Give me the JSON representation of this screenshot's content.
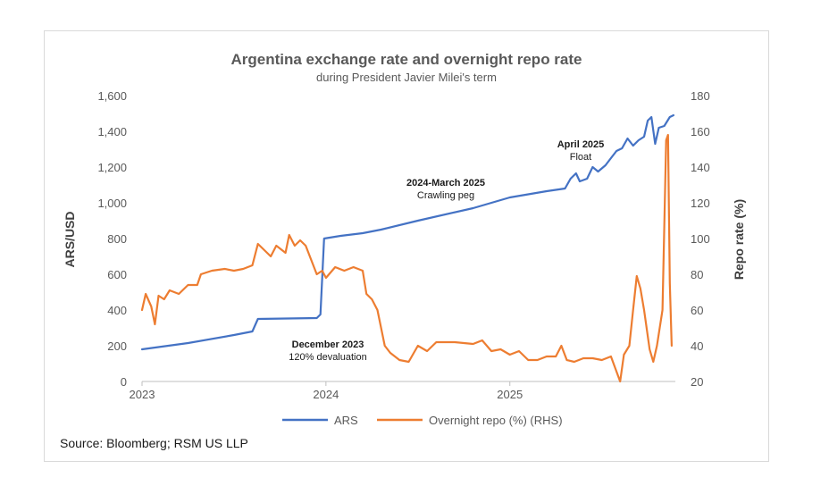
{
  "chart_data": {
    "type": "line",
    "title": "Argentina exchange rate and overnight repo rate",
    "subtitle": "during President Javier Milei's term",
    "ylabel_left": "ARS/USD",
    "ylabel_right": "Repo rate (%)",
    "ylim_left": [
      0,
      1600
    ],
    "ylim_right": [
      20,
      180
    ],
    "yticks_left": [
      "0",
      "200",
      "400",
      "600",
      "800",
      "1,000",
      "1,200",
      "1,400",
      "1,600"
    ],
    "yticks_right": [
      "20",
      "40",
      "60",
      "80",
      "100",
      "120",
      "140",
      "160",
      "180"
    ],
    "xticks": [
      {
        "label": "2023",
        "x": 2023.0
      },
      {
        "label": "2024",
        "x": 2024.0
      },
      {
        "label": "2025",
        "x": 2025.0
      }
    ],
    "xlim": [
      2023.0,
      2025.9
    ],
    "series": [
      {
        "name": "ARS",
        "axis": "left",
        "color": "#4472C4",
        "points": [
          [
            2023.0,
            180
          ],
          [
            2023.25,
            215
          ],
          [
            2023.5,
            260
          ],
          [
            2023.6,
            280
          ],
          [
            2023.63,
            350
          ],
          [
            2023.95,
            355
          ],
          [
            2023.97,
            375
          ],
          [
            2023.99,
            800
          ],
          [
            2024.08,
            815
          ],
          [
            2024.2,
            830
          ],
          [
            2024.3,
            850
          ],
          [
            2024.5,
            900
          ],
          [
            2024.8,
            970
          ],
          [
            2025.0,
            1030
          ],
          [
            2025.2,
            1065
          ],
          [
            2025.3,
            1080
          ],
          [
            2025.33,
            1135
          ],
          [
            2025.36,
            1165
          ],
          [
            2025.38,
            1120
          ],
          [
            2025.42,
            1135
          ],
          [
            2025.45,
            1200
          ],
          [
            2025.48,
            1175
          ],
          [
            2025.52,
            1210
          ],
          [
            2025.55,
            1250
          ],
          [
            2025.58,
            1290
          ],
          [
            2025.61,
            1305
          ],
          [
            2025.64,
            1360
          ],
          [
            2025.67,
            1320
          ],
          [
            2025.7,
            1350
          ],
          [
            2025.73,
            1370
          ],
          [
            2025.75,
            1460
          ],
          [
            2025.77,
            1480
          ],
          [
            2025.79,
            1330
          ],
          [
            2025.81,
            1420
          ],
          [
            2025.84,
            1430
          ],
          [
            2025.87,
            1480
          ],
          [
            2025.89,
            1490
          ]
        ]
      },
      {
        "name": "Overnight repo (%) (RHS)",
        "axis": "right",
        "color": "#ED7D31",
        "points": [
          [
            2023.0,
            60
          ],
          [
            2023.02,
            69
          ],
          [
            2023.05,
            62
          ],
          [
            2023.07,
            52
          ],
          [
            2023.09,
            68
          ],
          [
            2023.12,
            66
          ],
          [
            2023.15,
            71
          ],
          [
            2023.2,
            69
          ],
          [
            2023.25,
            74
          ],
          [
            2023.3,
            74
          ],
          [
            2023.32,
            80
          ],
          [
            2023.38,
            82
          ],
          [
            2023.45,
            83
          ],
          [
            2023.5,
            82
          ],
          [
            2023.55,
            83
          ],
          [
            2023.6,
            85
          ],
          [
            2023.63,
            97
          ],
          [
            2023.66,
            94
          ],
          [
            2023.7,
            90
          ],
          [
            2023.73,
            96
          ],
          [
            2023.78,
            92
          ],
          [
            2023.8,
            102
          ],
          [
            2023.83,
            96
          ],
          [
            2023.86,
            99
          ],
          [
            2023.89,
            96
          ],
          [
            2023.92,
            88
          ],
          [
            2023.95,
            80
          ],
          [
            2023.98,
            82
          ],
          [
            2024.0,
            78
          ],
          [
            2024.05,
            84
          ],
          [
            2024.1,
            82
          ],
          [
            2024.15,
            84
          ],
          [
            2024.2,
            82
          ],
          [
            2024.22,
            69
          ],
          [
            2024.25,
            66
          ],
          [
            2024.28,
            60
          ],
          [
            2024.32,
            40
          ],
          [
            2024.35,
            36
          ],
          [
            2024.4,
            32
          ],
          [
            2024.45,
            31
          ],
          [
            2024.5,
            40
          ],
          [
            2024.55,
            37
          ],
          [
            2024.6,
            42
          ],
          [
            2024.7,
            42
          ],
          [
            2024.8,
            41
          ],
          [
            2024.85,
            43
          ],
          [
            2024.9,
            37
          ],
          [
            2024.95,
            38
          ],
          [
            2025.0,
            35
          ],
          [
            2025.05,
            37
          ],
          [
            2025.1,
            32
          ],
          [
            2025.15,
            32
          ],
          [
            2025.2,
            34
          ],
          [
            2025.25,
            34
          ],
          [
            2025.28,
            40
          ],
          [
            2025.31,
            32
          ],
          [
            2025.35,
            31
          ],
          [
            2025.4,
            33
          ],
          [
            2025.45,
            33
          ],
          [
            2025.5,
            32
          ],
          [
            2025.55,
            34
          ],
          [
            2025.6,
            20
          ],
          [
            2025.62,
            35
          ],
          [
            2025.65,
            40
          ],
          [
            2025.67,
            60
          ],
          [
            2025.69,
            79
          ],
          [
            2025.71,
            72
          ],
          [
            2025.73,
            60
          ],
          [
            2025.76,
            38
          ],
          [
            2025.78,
            31
          ],
          [
            2025.8,
            40
          ],
          [
            2025.83,
            60
          ],
          [
            2025.85,
            155
          ],
          [
            2025.86,
            158
          ],
          [
            2025.87,
            75
          ],
          [
            2025.88,
            40
          ]
        ]
      }
    ],
    "annotations": [
      {
        "bold": "April 2025",
        "text": "Float"
      },
      {
        "bold": "2024-March 2025",
        "text": "Crawling peg"
      },
      {
        "bold": "December 2023",
        "text": "120% devaluation"
      }
    ],
    "legend": [
      {
        "label": "ARS",
        "color": "#4472C4"
      },
      {
        "label": "Overnight repo (%) (RHS)",
        "color": "#ED7D31"
      }
    ],
    "legend_position": "bottom",
    "source": "Source: Bloomberg; RSM US LLP"
  }
}
